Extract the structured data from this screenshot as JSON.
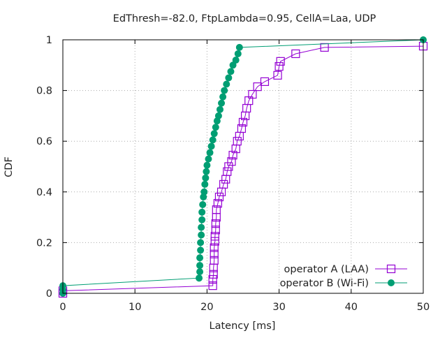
{
  "chart_data": {
    "type": "line",
    "title": "EdThresh=-82.0, FtpLambda=0.95, CellA=Laa, UDP",
    "xlabel": "Latency [ms]",
    "ylabel": "CDF",
    "xlim": [
      0,
      50
    ],
    "ylim": [
      0,
      1
    ],
    "x_ticks": [
      "0",
      "10",
      "20",
      "30",
      "40",
      "50"
    ],
    "y_ticks": [
      "0",
      "0.2",
      "0.4",
      "0.6",
      "0.8",
      "1"
    ],
    "grid": true,
    "legend_position": "bottom-right",
    "series": [
      {
        "name": "operator A (LAA)",
        "color": "#9400d3",
        "marker": "open-square",
        "x": [
          0,
          0,
          20.8,
          20.8,
          20.9,
          20.9,
          21.0,
          21.0,
          21.0,
          21.1,
          21.1,
          21.2,
          21.2,
          21.3,
          21.3,
          21.5,
          21.7,
          22.0,
          22.3,
          22.6,
          22.8,
          23.0,
          23.4,
          23.6,
          24.0,
          24.2,
          24.5,
          24.8,
          25.0,
          25.3,
          25.5,
          25.8,
          26.3,
          27.0,
          28.0,
          29.8,
          30.0,
          30.2,
          32.3,
          36.3,
          50
        ],
        "y": [
          0,
          0.01,
          0.03,
          0.055,
          0.075,
          0.1,
          0.13,
          0.155,
          0.18,
          0.205,
          0.225,
          0.25,
          0.275,
          0.3,
          0.33,
          0.355,
          0.38,
          0.4,
          0.43,
          0.45,
          0.48,
          0.5,
          0.52,
          0.545,
          0.57,
          0.6,
          0.62,
          0.65,
          0.675,
          0.7,
          0.73,
          0.76,
          0.785,
          0.815,
          0.835,
          0.86,
          0.895,
          0.915,
          0.945,
          0.97,
          0.975
        ]
      },
      {
        "name": "operator B (Wi-Fi)",
        "color": "#009e73",
        "marker": "filled-circle",
        "x": [
          0,
          0,
          0,
          18.9,
          19.0,
          19.0,
          19.0,
          19.1,
          19.1,
          19.2,
          19.2,
          19.3,
          19.3,
          19.4,
          19.5,
          19.6,
          19.7,
          19.8,
          19.9,
          20.0,
          20.2,
          20.4,
          20.6,
          20.8,
          21.0,
          21.2,
          21.4,
          21.6,
          21.8,
          22.0,
          22.2,
          22.4,
          22.7,
          23.0,
          23.3,
          23.6,
          24.0,
          24.3,
          24.5,
          50
        ],
        "y": [
          0,
          0.015,
          0.03,
          0.06,
          0.085,
          0.11,
          0.14,
          0.17,
          0.2,
          0.23,
          0.26,
          0.29,
          0.32,
          0.35,
          0.38,
          0.4,
          0.43,
          0.455,
          0.48,
          0.505,
          0.53,
          0.555,
          0.58,
          0.605,
          0.63,
          0.655,
          0.68,
          0.7,
          0.725,
          0.75,
          0.775,
          0.8,
          0.825,
          0.85,
          0.875,
          0.9,
          0.92,
          0.945,
          0.97,
          1.0
        ]
      }
    ]
  }
}
